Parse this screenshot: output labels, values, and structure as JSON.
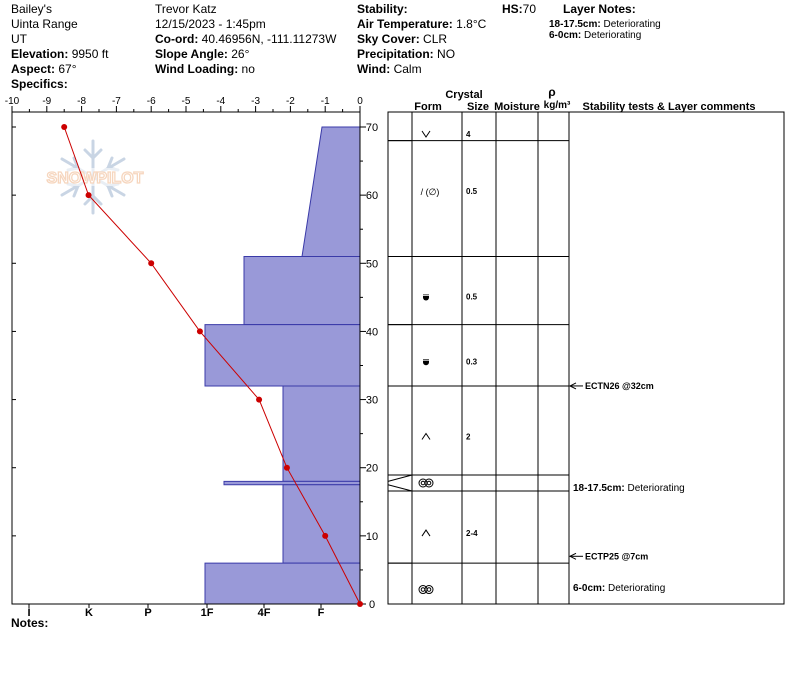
{
  "header": {
    "col1": {
      "location": "Bailey's",
      "range": "Uinta Range",
      "state": "UT",
      "elevation_label": "Elevation:",
      "elevation_value": "9950 ft",
      "aspect_label": "Aspect:",
      "aspect_value": "67°",
      "specifics_label": "Specifics:"
    },
    "col2": {
      "observer": "Trevor Katz",
      "datetime": "12/15/2023 - 1:45pm",
      "coord_label": "Co-ord:",
      "coord_value": "40.46956N, -111.11273W",
      "slope_label": "Slope Angle:",
      "slope_value": "26°",
      "wind_loading_label": "Wind Loading:",
      "wind_loading_value": "no"
    },
    "col3": {
      "stability_label": "Stability:",
      "stability_value": "",
      "air_temp_label": "Air Temperature:",
      "air_temp_value": "1.8°C",
      "sky_label": "Sky Cover:",
      "sky_value": "CLR",
      "precip_label": "Precipitation:",
      "precip_value": "NO",
      "wind_label": "Wind:",
      "wind_value": "Calm"
    },
    "hs_label": "HS:",
    "hs_value": "70",
    "layer_notes_title": "Layer Notes:",
    "layer_notes": [
      {
        "range": "18-17.5cm:",
        "text": "Deteriorating"
      },
      {
        "range": "6-0cm:",
        "text": "Deteriorating"
      }
    ]
  },
  "watermark": "SNOWPILOT",
  "notes_label": "Notes:",
  "chart_data": {
    "type": "snow-profile",
    "temperature_axis": {
      "ticks": [
        "-10",
        "-9",
        "-8",
        "-7",
        "-6",
        "-5",
        "-4",
        "-3",
        "-2",
        "-1",
        "0"
      ],
      "range": [
        -10,
        0
      ]
    },
    "height_axis": {
      "ticks": [
        "0",
        "10",
        "20",
        "30",
        "40",
        "50",
        "60",
        "70"
      ],
      "range": [
        0,
        70
      ],
      "unit": "cm"
    },
    "hardness_axis": {
      "ticks": [
        "I",
        "K",
        "P",
        "1F",
        "4F",
        "F"
      ]
    },
    "temperature_profile": [
      {
        "height": 70,
        "temp": -8.5
      },
      {
        "height": 60,
        "temp": -7.8
      },
      {
        "height": 50,
        "temp": -6.0
      },
      {
        "height": 40,
        "temp": -4.6
      },
      {
        "height": 30,
        "temp": -2.9
      },
      {
        "height": 20,
        "temp": -2.1
      },
      {
        "height": 10,
        "temp": -1.0
      },
      {
        "height": 0,
        "temp": 0.0
      }
    ],
    "hardness_profile": [
      {
        "top": 70,
        "bottom": 51,
        "hardness_top": "F",
        "hardness_bottom": "4F+"
      },
      {
        "top": 51,
        "bottom": 41,
        "hardness": "4F"
      },
      {
        "top": 41,
        "bottom": 32,
        "hardness": "1F"
      },
      {
        "top": 32,
        "bottom": 18,
        "hardness": "4F-"
      },
      {
        "top": 18,
        "bottom": 17.5,
        "hardness": "1F-"
      },
      {
        "top": 17.5,
        "bottom": 6,
        "hardness": "4F-"
      },
      {
        "top": 6,
        "bottom": 0,
        "hardness": "1F"
      }
    ],
    "table_headers": {
      "crystal": "Crystal",
      "rho": "ρ",
      "form": "Form",
      "size": "Size",
      "moisture": "Moisture",
      "density_unit": "kg/m³",
      "comments": "Stability tests & Layer comments"
    },
    "layers": [
      {
        "top": 70,
        "bottom": 68,
        "form": "v",
        "size": "4"
      },
      {
        "top": 68,
        "bottom": 51,
        "form": "/ (∅)",
        "size": "0.5"
      },
      {
        "top": 51,
        "bottom": 41,
        "form": "rounded",
        "size": "0.5"
      },
      {
        "top": 41,
        "bottom": 32,
        "form": "rounded",
        "size": "0.3"
      },
      {
        "top": 32,
        "bottom": 18,
        "form": "^",
        "size": "2"
      },
      {
        "top": 18,
        "bottom": 17.5,
        "form": "melt-freeze",
        "size": ""
      },
      {
        "top": 17.5,
        "bottom": 6,
        "form": "^",
        "size": "2-4"
      },
      {
        "top": 6,
        "bottom": 0,
        "form": "melt-freeze",
        "size": ""
      }
    ],
    "stability_tests": [
      {
        "height": 32,
        "label": "ECTN26 @32cm"
      },
      {
        "height": 7,
        "label": "ECTP25 @7cm"
      }
    ],
    "layer_comments": [
      {
        "range": "18-17.5cm:",
        "text": "Deteriorating"
      },
      {
        "range": "6-0cm:",
        "text": "Deteriorating"
      }
    ]
  }
}
